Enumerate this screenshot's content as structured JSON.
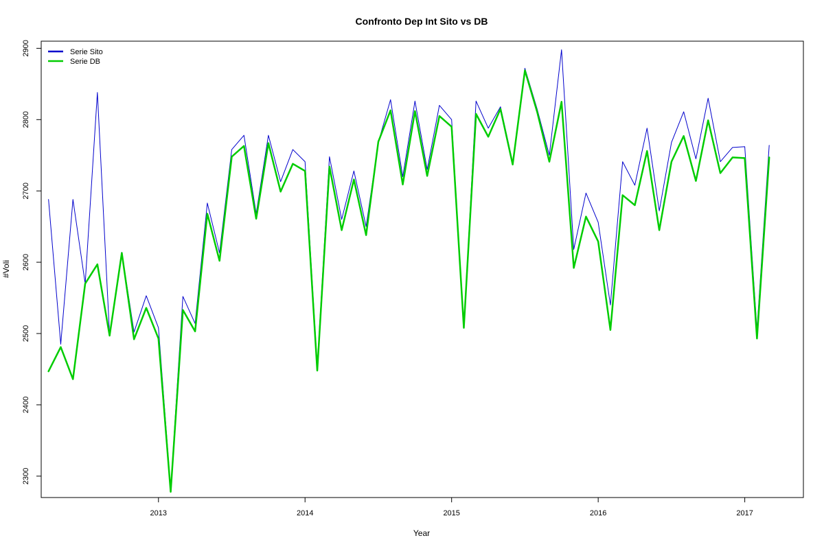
{
  "chart_data": {
    "type": "line",
    "title": "Confronto Dep Int Sito vs DB",
    "xlabel": "Year",
    "ylabel": "#Voli",
    "xlim": [
      2012.2,
      2017.4
    ],
    "ylim": [
      2270,
      2910
    ],
    "x_ticks": [
      2013,
      2014,
      2015,
      2016,
      2017
    ],
    "y_ticks": [
      2300,
      2400,
      2500,
      2600,
      2700,
      2800,
      2900
    ],
    "grid": false,
    "legend_position": "top-left",
    "x_start": 2012.25,
    "x_step": 0.0833333,
    "series": [
      {
        "name": "Serie Sito",
        "color": "#0000cc",
        "line_width": 1,
        "values": [
          2688,
          2485,
          2688,
          2570,
          2838,
          2497,
          2614,
          2502,
          2553,
          2508,
          2282,
          2552,
          2514,
          2683,
          2613,
          2758,
          2778,
          2668,
          2778,
          2713,
          2758,
          2741,
          2455,
          2748,
          2660,
          2728,
          2650,
          2768,
          2828,
          2720,
          2826,
          2730,
          2820,
          2800,
          2510,
          2826,
          2788,
          2818,
          2740,
          2872,
          2815,
          2750,
          2898,
          2618,
          2697,
          2656,
          2540,
          2741,
          2708,
          2788,
          2672,
          2768,
          2811,
          2745,
          2830,
          2741,
          2761,
          2762,
          2505,
          2764
        ]
      },
      {
        "name": "Serie DB",
        "color": "#00cc00",
        "line_width": 2.5,
        "values": [
          2447,
          2481,
          2436,
          2570,
          2597,
          2497,
          2613,
          2492,
          2536,
          2493,
          2278,
          2533,
          2503,
          2668,
          2602,
          2748,
          2763,
          2661,
          2767,
          2699,
          2738,
          2728,
          2448,
          2734,
          2645,
          2716,
          2638,
          2769,
          2813,
          2709,
          2812,
          2721,
          2805,
          2790,
          2508,
          2808,
          2776,
          2815,
          2737,
          2869,
          2811,
          2741,
          2825,
          2592,
          2664,
          2629,
          2505,
          2694,
          2680,
          2756,
          2645,
          2741,
          2777,
          2714,
          2799,
          2725,
          2747,
          2746,
          2493,
          2747
        ]
      }
    ]
  }
}
